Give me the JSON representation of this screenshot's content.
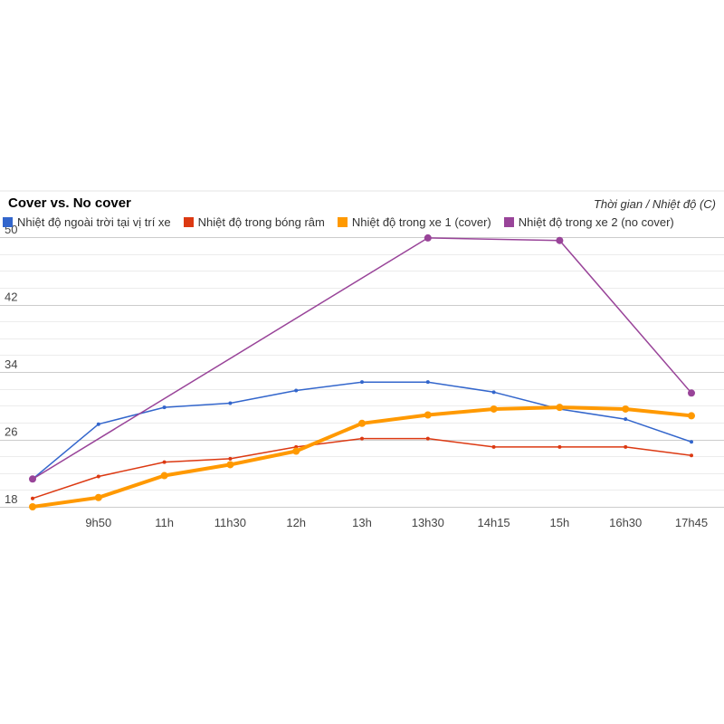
{
  "chart_data": {
    "type": "line",
    "title": "Cover vs. No cover",
    "annotation": "Thời gian / Nhiệt độ (C)",
    "categories": [
      "",
      "9h50",
      "11h",
      "11h30",
      "12h",
      "13h",
      "13h30",
      "14h15",
      "15h",
      "16h30",
      "17h45"
    ],
    "ylim": [
      18,
      50
    ],
    "yticks": [
      18,
      26,
      34,
      42,
      50
    ],
    "grid": true,
    "legend_position": "top",
    "series": [
      {
        "name": "Nhiệt độ ngoài trời tại vị trí xe",
        "color": "#3366cc",
        "stroke_weight": "thin",
        "values": [
          21.3,
          27.8,
          29.8,
          30.3,
          31.8,
          32.8,
          32.8,
          31.6,
          29.6,
          28.4,
          25.7
        ]
      },
      {
        "name": "Nhiệt độ trong bóng râm",
        "color": "#dc3912",
        "stroke_weight": "thin",
        "values": [
          19,
          21.6,
          23.3,
          23.7,
          25.1,
          26.1,
          26.1,
          25.1,
          25.1,
          25.1,
          24.1
        ]
      },
      {
        "name": "Nhiệt độ trong xe 1 (cover)",
        "color": "#ff9900",
        "stroke_weight": "thick",
        "values": [
          18,
          19.1,
          21.7,
          23,
          24.6,
          27.9,
          28.9,
          29.6,
          29.8,
          29.6,
          28.8
        ]
      },
      {
        "name": "Nhiệt độ trong xe 2 (no cover)",
        "color": "#994499",
        "stroke_weight": "thin",
        "values": [
          21.3,
          null,
          null,
          null,
          null,
          null,
          49.9,
          null,
          49.6,
          null,
          31.5
        ]
      }
    ]
  }
}
